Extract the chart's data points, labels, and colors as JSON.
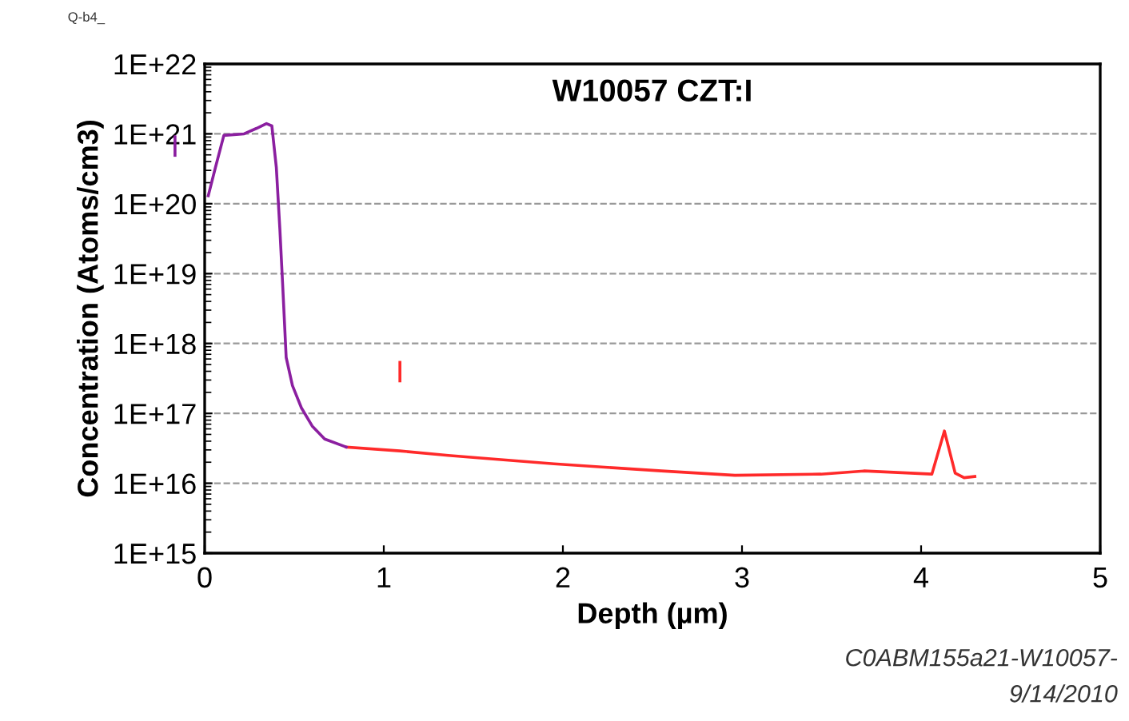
{
  "chart_data": {
    "type": "line",
    "title": "W10057 CZT:I",
    "xlabel": "Depth (µm)",
    "ylabel": "Concentration (Atoms/cm3)",
    "log": "y",
    "xlim": [
      0,
      5
    ],
    "xticks": [
      0,
      1,
      2,
      3,
      4,
      5
    ],
    "ylim": [
      1000000000000000.0,
      1e+22
    ],
    "yticks": [
      {
        "value": 1000000000000000.0,
        "label": "1E+15"
      },
      {
        "value": 1e+16,
        "label": "1E+16"
      },
      {
        "value": 1e+17,
        "label": "1E+17"
      },
      {
        "value": 1e+18,
        "label": "1E+18"
      },
      {
        "value": 1e+19,
        "label": "1E+19"
      },
      {
        "value": 1e+20,
        "label": "1E+20"
      },
      {
        "value": 1e+21,
        "label": "1E+21"
      },
      {
        "value": 1e+22,
        "label": "1E+22"
      }
    ],
    "grid": "y",
    "line_style": "solid",
    "marker": "none",
    "series": [
      {
        "name": "I",
        "color": "#ff2a2a",
        "x": [
          0.79,
          1.09,
          1.36,
          1.54,
          1.95,
          2.55,
          2.96,
          3.44,
          3.68,
          4.06,
          4.13,
          4.19,
          4.24,
          4.3
        ],
        "values": [
          3.3e+16,
          2.9e+16,
          2.5e+16,
          2.3e+16,
          1.9e+16,
          1.5e+16,
          1.3e+16,
          1.35e+16,
          1.5e+16,
          1.35e+16,
          5.6e+16,
          1.4e+16,
          1.2e+16,
          1.25e+16
        ]
      },
      {
        "name": "I",
        "color": "#8b1fa0",
        "x": [
          0.02,
          0.06,
          0.107,
          0.22,
          0.29,
          0.345,
          0.375,
          0.4,
          0.42,
          0.435,
          0.455,
          0.49,
          0.54,
          0.6,
          0.67,
          0.79
        ],
        "values": [
          1.3e+20,
          3.3e+20,
          9.5e+20,
          1e+21,
          1.2e+21,
          1.4e+21,
          1.3e+21,
          3.3e+20,
          4.2e+19,
          7.2e+18,
          6.3e+17,
          2.5e+17,
          1.2e+17,
          6.6e+16,
          4.3e+16,
          3.3e+16
        ]
      }
    ],
    "annotations": [
      "Q-b4_",
      "C0ABM155a21-W10057-",
      "9/14/2010"
    ]
  }
}
